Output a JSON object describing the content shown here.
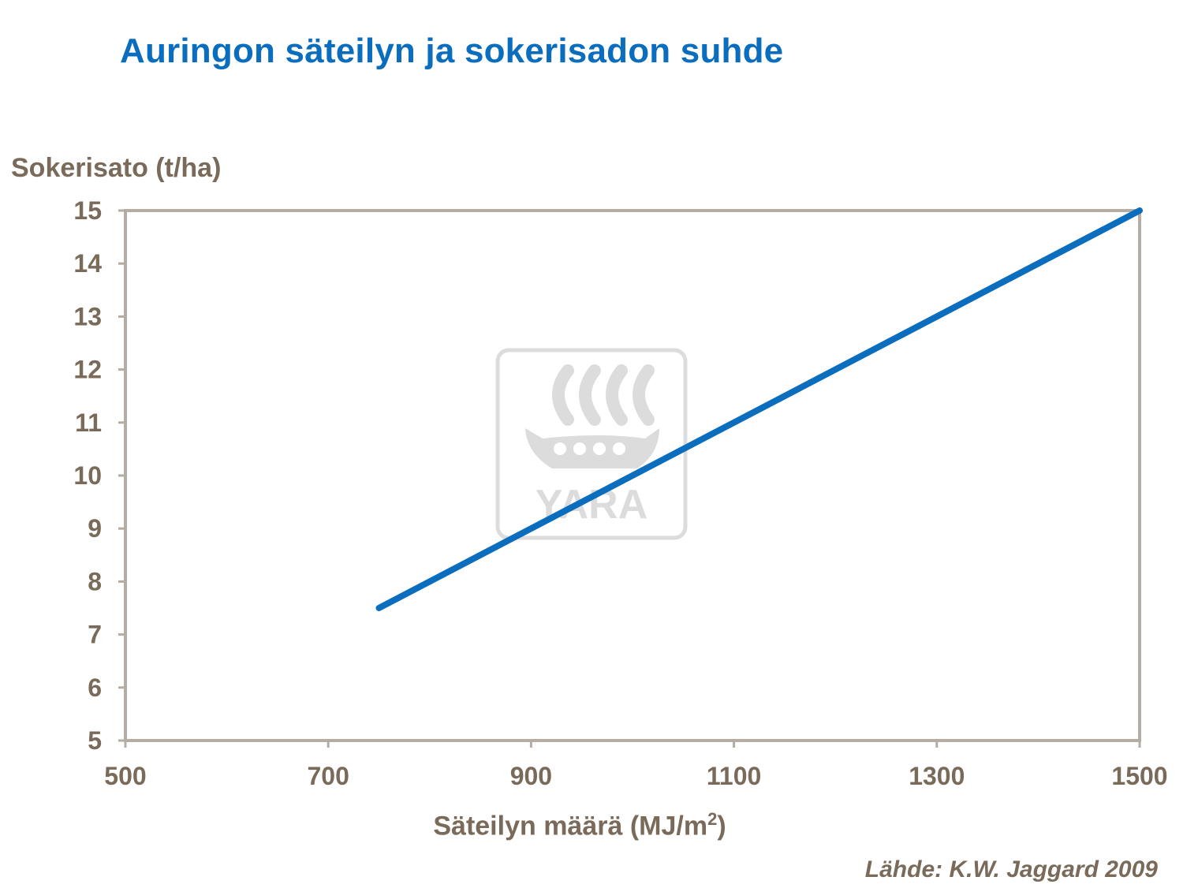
{
  "chart_data": {
    "type": "line",
    "title": "Auringon säteilyn ja sokerisadon suhde",
    "xlabel_main": "Säteilyn määrä (MJ/m",
    "xlabel_sup": "2",
    "xlabel_end": ")",
    "ylabel": "Sokerisato (t/ha)",
    "xlim": [
      500,
      1500
    ],
    "ylim": [
      5,
      15
    ],
    "x_ticks": [
      500,
      700,
      900,
      1100,
      1300,
      1500
    ],
    "y_ticks": [
      5,
      6,
      7,
      8,
      9,
      10,
      11,
      12,
      13,
      14,
      15
    ],
    "grid": false,
    "series": [
      {
        "x": [
          750,
          1500
        ],
        "y": [
          7.5,
          15
        ],
        "color": "#0a6dbd"
      }
    ]
  },
  "source": "Lähde: K.W. Jaggard 2009",
  "watermark": {
    "icon": "yara-viking-ship-logo",
    "text": "YARA",
    "color": "#d9d9d9"
  },
  "colors": {
    "title": "#0a6dbd",
    "axis_text": "#7a6a5a",
    "axis_frame": "#b5aca3"
  }
}
